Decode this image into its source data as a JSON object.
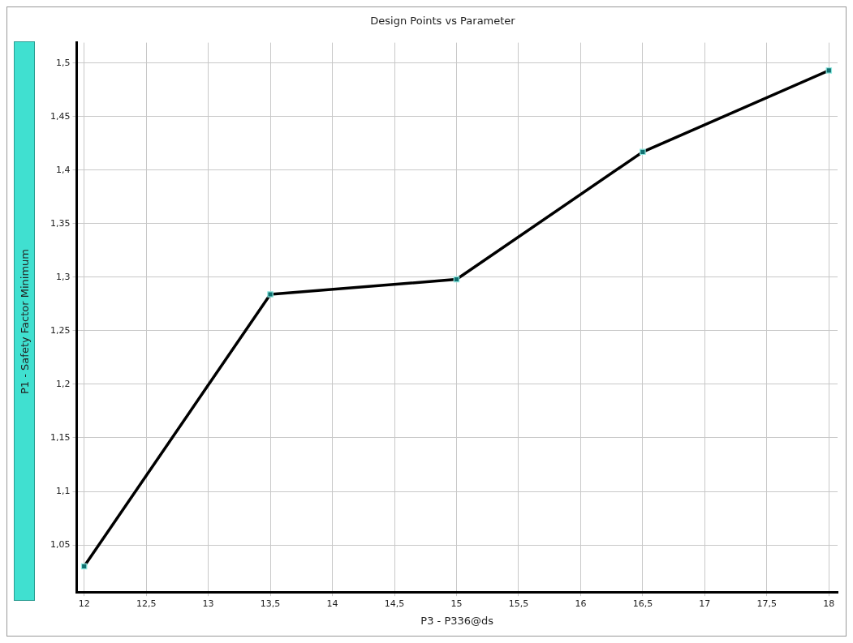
{
  "chart_data": {
    "type": "line",
    "title": "Design Points vs Parameter",
    "xlabel": "P3 - P336@ds",
    "ylabel": "P1 - Safety Factor Minimum",
    "x": [
      12,
      13.5,
      15,
      16.5,
      18
    ],
    "series": [
      {
        "color": "#000000",
        "values": [
          1.03,
          1.284,
          1.298,
          1.417,
          1.493
        ]
      }
    ],
    "xlim": [
      11.94,
      18.07
    ],
    "ylim": [
      1.006,
      1.519
    ],
    "xticks": [
      12,
      {
        "value": 12.5,
        "label": "12,5"
      },
      13,
      {
        "value": 13.5,
        "label": "13,5"
      },
      14,
      {
        "value": 14.5,
        "label": "14,5"
      },
      15,
      {
        "value": 15.5,
        "label": "15,5"
      },
      16,
      {
        "value": 16.5,
        "label": "16,5"
      },
      17,
      {
        "value": 17.5,
        "label": "17,5"
      },
      18
    ],
    "yticks": [
      {
        "value": 1.05,
        "label": "1,05"
      },
      {
        "value": 1.1,
        "label": "1,1"
      },
      {
        "value": 1.15,
        "label": "1,15"
      },
      {
        "value": 1.2,
        "label": "1,2"
      },
      {
        "value": 1.25,
        "label": "1,25"
      },
      {
        "value": 1.3,
        "label": "1,3"
      },
      {
        "value": 1.35,
        "label": "1,35"
      },
      {
        "value": 1.4,
        "label": "1,4"
      },
      {
        "value": 1.45,
        "label": "1,45"
      },
      {
        "value": 1.5,
        "label": "1,5"
      }
    ],
    "grid": true,
    "legend": false,
    "marker": "square",
    "line_style": "solid"
  }
}
